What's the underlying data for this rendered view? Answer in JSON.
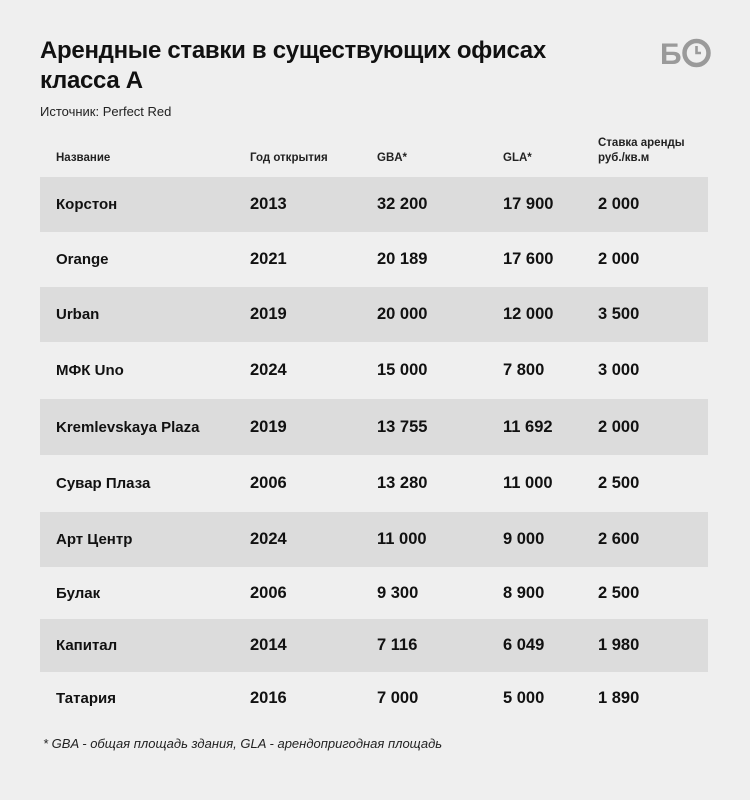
{
  "title": "Арендные ставки в существующих офисах класса А",
  "source": "Источник: Perfect Red",
  "logo_text": "БО",
  "footnote": "* GBA - общая площадь здания, GLA - арендопригодная площадь",
  "colors": {
    "background": "#efefef",
    "row_shade": "#dcdcdc",
    "text": "#111111",
    "logo": "#9a9a9a"
  },
  "chart_data": {
    "type": "table",
    "title": "Арендные ставки в существующих офисах класса А",
    "columns": [
      "Название",
      "Год открытия",
      "GBA*",
      "GLA*",
      "Ставка аренды руб./кв.м"
    ],
    "rows": [
      [
        "Корстон",
        "2013",
        "32 200",
        "17 900",
        "2 000"
      ],
      [
        "Orange",
        "2021",
        "20 189",
        "17 600",
        "2 000"
      ],
      [
        "Urban",
        "2019",
        "20 000",
        "12 000",
        "3 500"
      ],
      [
        "МФК Uno",
        "2024",
        "15 000",
        "7 800",
        "3 000"
      ],
      [
        "Kremlevskaya Plaza",
        "2019",
        "13 755",
        "11 692",
        "2 000"
      ],
      [
        "Сувар Плаза",
        "2006",
        "13 280",
        "11 000",
        "2 500"
      ],
      [
        "Арт Центр",
        "2024",
        "11 000",
        "9 000",
        "2 600"
      ],
      [
        "Булак",
        "2006",
        "9 300",
        "8 900",
        "2 500"
      ],
      [
        "Капитал",
        "2014",
        "7 116",
        "6 049",
        "1 980"
      ],
      [
        "Татария",
        "2016",
        "7 000",
        "5 000",
        "1 890"
      ]
    ]
  }
}
